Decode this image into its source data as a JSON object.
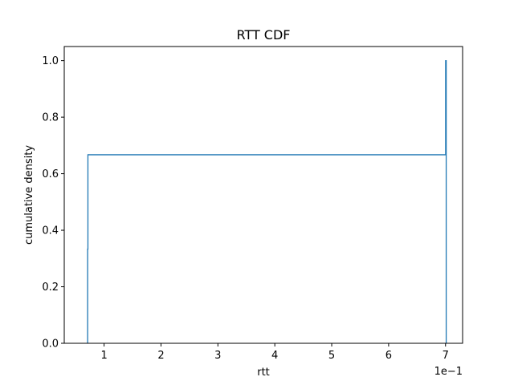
{
  "chart_data": {
    "type": "line",
    "title": "RTT CDF",
    "xlabel": "rtt",
    "ylabel": "cumulative density",
    "x_offset_label": "1e−1",
    "x_scale_factor": 0.1,
    "xlim": [
      0.03,
      0.73
    ],
    "ylim": [
      0.0,
      1.05
    ],
    "x_ticks": [
      {
        "value": 0.1,
        "label": "1"
      },
      {
        "value": 0.2,
        "label": "2"
      },
      {
        "value": 0.3,
        "label": "3"
      },
      {
        "value": 0.4,
        "label": "4"
      },
      {
        "value": 0.5,
        "label": "5"
      },
      {
        "value": 0.6,
        "label": "6"
      },
      {
        "value": 0.7,
        "label": "7"
      }
    ],
    "y_ticks": [
      {
        "value": 0.0,
        "label": "0.0"
      },
      {
        "value": 0.2,
        "label": "0.2"
      },
      {
        "value": 0.4,
        "label": "0.4"
      },
      {
        "value": 0.6,
        "label": "0.6"
      },
      {
        "value": 0.8,
        "label": "0.8"
      },
      {
        "value": 1.0,
        "label": "1.0"
      }
    ],
    "grid": false,
    "series": [
      {
        "color": "#1f77b4",
        "points": [
          {
            "x": 0.0711,
            "y": 0.0
          },
          {
            "x": 0.0711,
            "y": 0.333
          },
          {
            "x": 0.0716,
            "y": 0.333
          },
          {
            "x": 0.0716,
            "y": 0.667
          },
          {
            "x": 0.7002,
            "y": 0.667
          },
          {
            "x": 0.7002,
            "y": 1.0
          },
          {
            "x": 0.7012,
            "y": 1.0
          },
          {
            "x": 0.7012,
            "y": 0.0
          }
        ]
      }
    ]
  }
}
